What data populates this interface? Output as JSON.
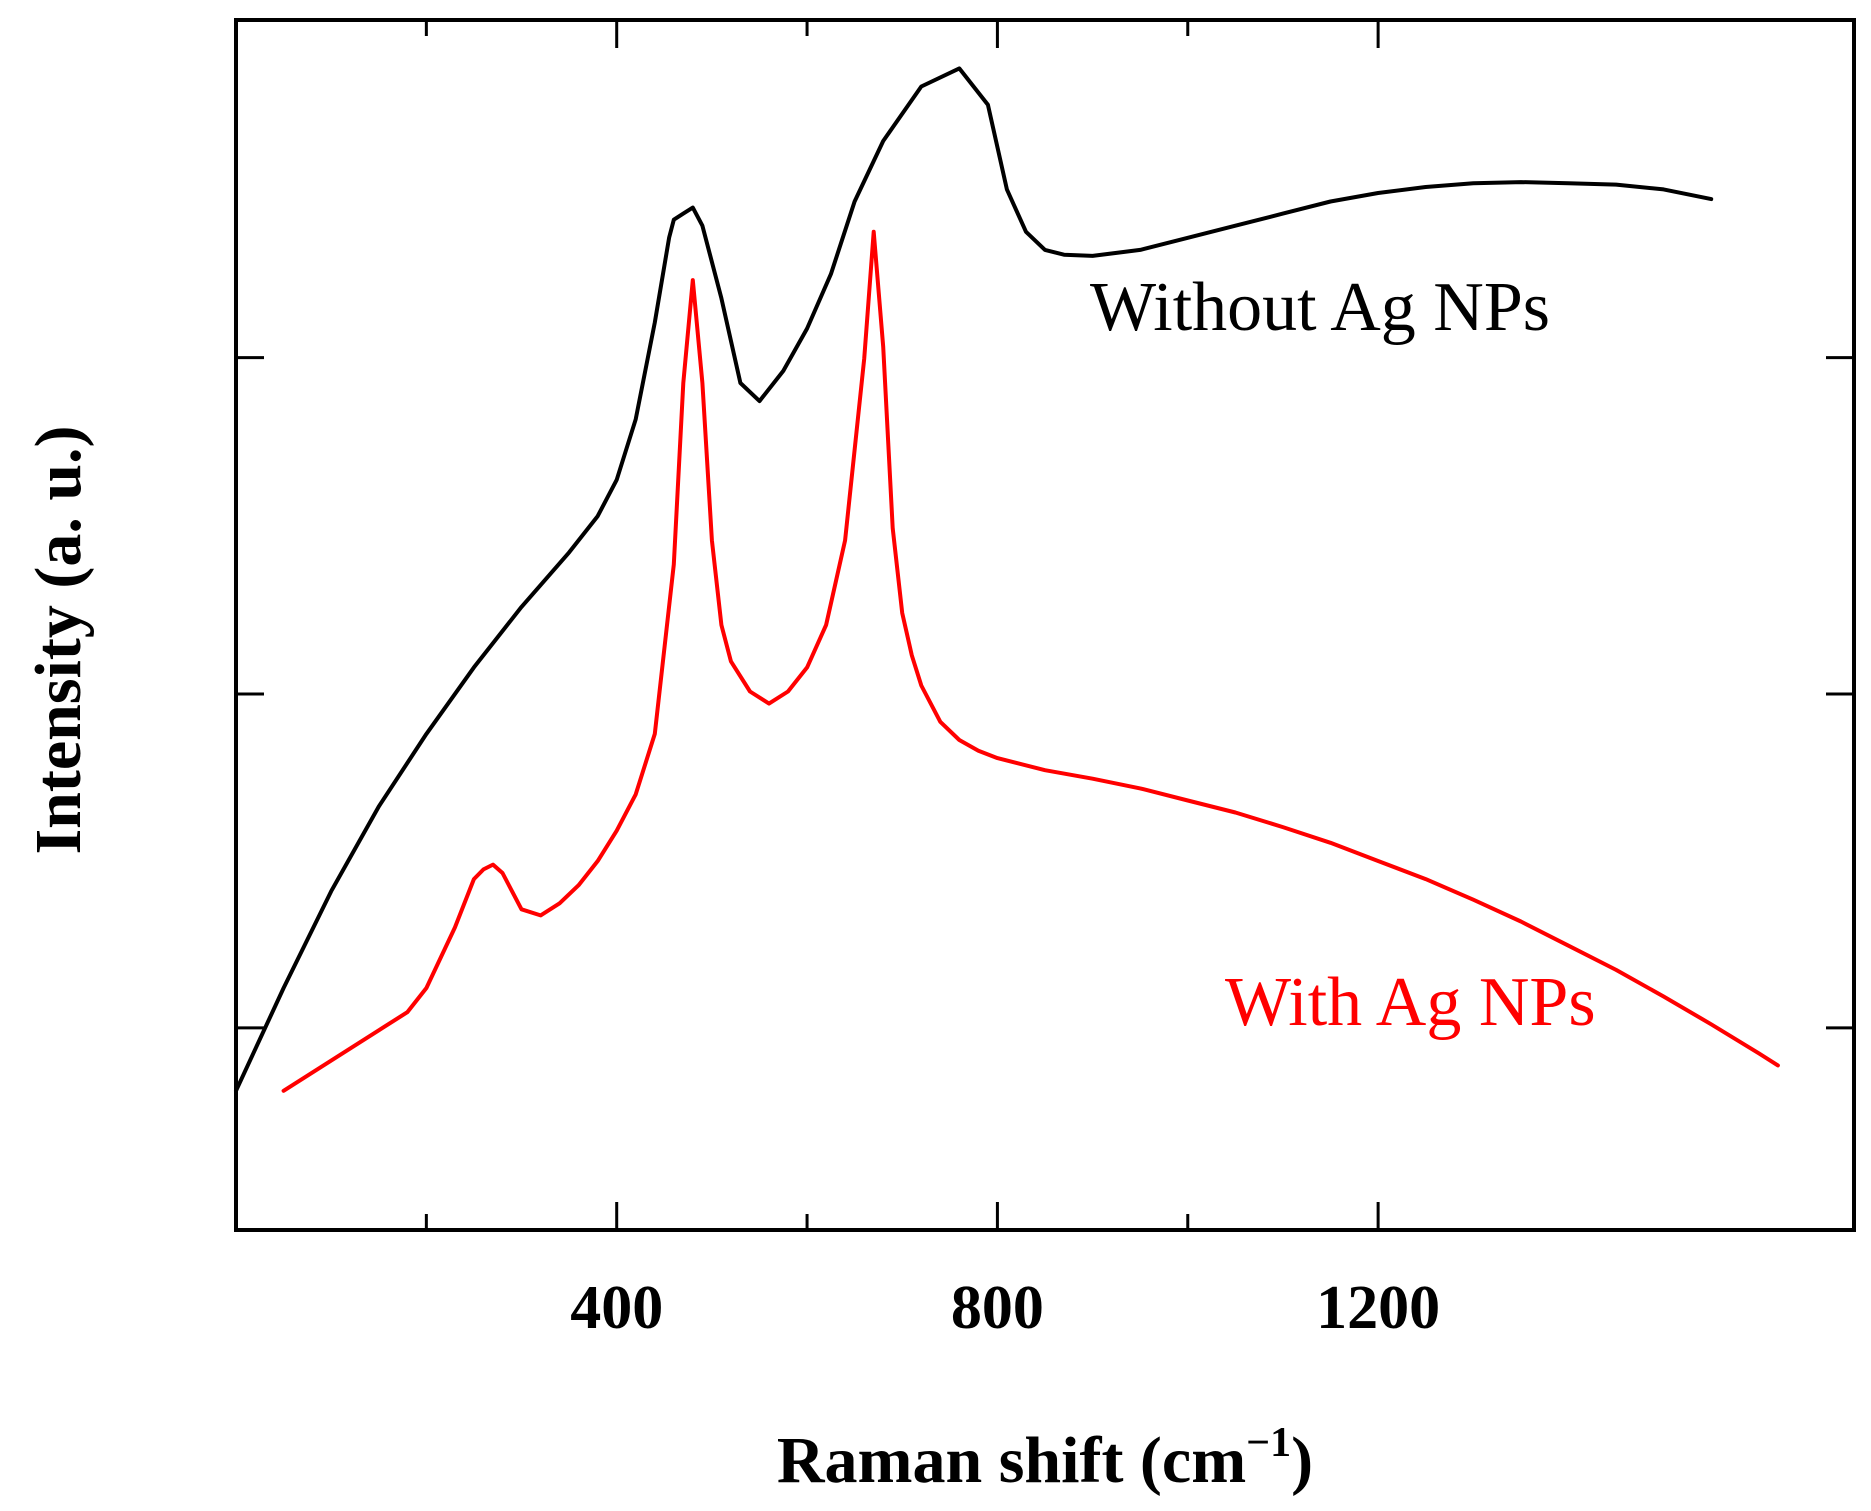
{
  "chart_data": {
    "type": "line",
    "title": "",
    "xlabel": "Raman shift (cm",
    "xlabel_sup": "−1",
    "xlabel_close": ")",
    "ylabel": "Intensity (a. u.)",
    "xlim": [
      0,
      1700
    ],
    "ylim": [
      0,
      100
    ],
    "x_ticks_major": [
      400,
      800,
      1200
    ],
    "x_tick_labels": [
      "400",
      "800",
      "1200"
    ],
    "x_ticks_minor": [
      200,
      600,
      1000
    ],
    "y_ticks": [
      16.7,
      44.3,
      72.1
    ],
    "y_tick_labels_shown": false,
    "grid": false,
    "legend": "inline labels",
    "series": [
      {
        "name": "Without Ag NPs",
        "label": "Without Ag NPs",
        "color": "#000000",
        "x": [
          0,
          50,
          100,
          150,
          200,
          250,
          300,
          350,
          380,
          400,
          420,
          440,
          455,
          460,
          470,
          480,
          490,
          510,
          530,
          550,
          575,
          600,
          625,
          650,
          680,
          720,
          760,
          790,
          810,
          830,
          850,
          870,
          900,
          950,
          1000,
          1050,
          1100,
          1150,
          1200,
          1250,
          1300,
          1350,
          1400,
          1450,
          1500,
          1550
        ],
        "y": [
          11.5,
          20.0,
          28.0,
          35.0,
          41.0,
          46.5,
          51.5,
          56.0,
          59.0,
          62.0,
          67.0,
          75.0,
          82.0,
          83.5,
          84.0,
          84.5,
          83.0,
          77.0,
          70.0,
          68.5,
          71.0,
          74.5,
          79.0,
          85.0,
          90.0,
          94.5,
          96.0,
          93.0,
          86.0,
          82.5,
          81.0,
          80.6,
          80.5,
          81.0,
          82.0,
          83.0,
          84.0,
          85.0,
          85.7,
          86.2,
          86.5,
          86.6,
          86.5,
          86.4,
          86.0,
          85.2
        ]
      },
      {
        "name": "With Ag NPs",
        "label": "With Ag NPs",
        "color": "#ff0000",
        "x": [
          50,
          100,
          150,
          180,
          200,
          230,
          250,
          260,
          270,
          280,
          290,
          300,
          320,
          340,
          360,
          380,
          400,
          420,
          440,
          460,
          470,
          480,
          490,
          500,
          510,
          520,
          540,
          560,
          580,
          600,
          620,
          640,
          660,
          670,
          680,
          690,
          700,
          710,
          720,
          740,
          760,
          780,
          800,
          850,
          900,
          950,
          1000,
          1050,
          1100,
          1150,
          1200,
          1250,
          1300,
          1350,
          1400,
          1450,
          1500,
          1550,
          1600,
          1620
        ],
        "y": [
          11.5,
          14.0,
          16.5,
          18.0,
          20.0,
          25.0,
          29.0,
          29.8,
          30.2,
          29.5,
          28.0,
          26.5,
          26.0,
          27.0,
          28.5,
          30.5,
          33.0,
          36.0,
          41.0,
          55.0,
          70.0,
          78.5,
          70.0,
          57.0,
          50.0,
          47.0,
          44.5,
          43.5,
          44.5,
          46.5,
          50.0,
          57.0,
          72.0,
          82.5,
          73.0,
          58.0,
          51.0,
          47.5,
          45.0,
          42.0,
          40.5,
          39.6,
          39.0,
          38.0,
          37.3,
          36.5,
          35.5,
          34.5,
          33.3,
          32.0,
          30.5,
          29.0,
          27.3,
          25.5,
          23.5,
          21.5,
          19.3,
          17.0,
          14.6,
          13.6
        ]
      }
    ]
  }
}
